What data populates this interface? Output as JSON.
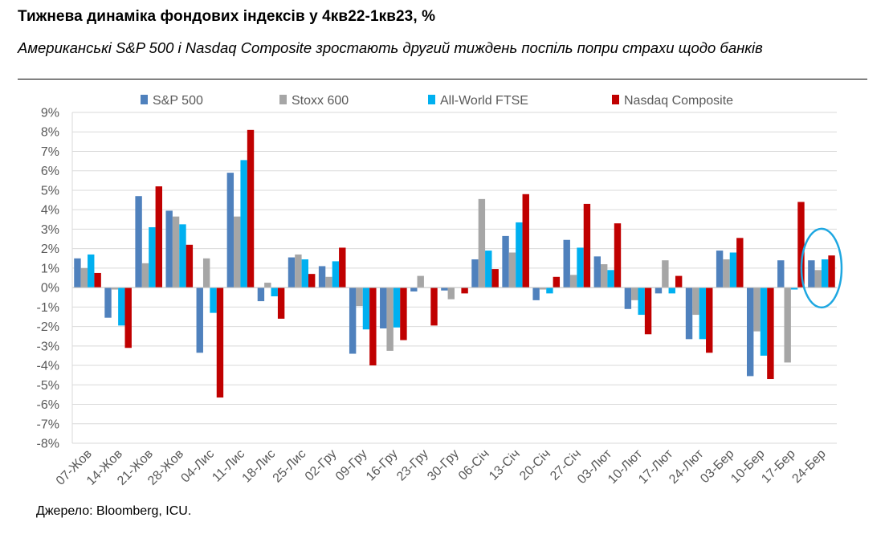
{
  "header": {
    "title": "Тижнева динаміка фондових індексів у 4кв22-1кв23, %",
    "subtitle": "Американські S&P 500 і Nasdaq Composite зростають другий тиждень поспіль попри страхи щодо банків"
  },
  "footer": {
    "source": "Джерело: Bloomberg, ICU."
  },
  "chart_data": {
    "type": "bar",
    "title": "Тижнева динаміка фондових індексів у 4кв22-1кв23, %",
    "xlabel": "",
    "ylabel": "",
    "ylim": [
      -8,
      9
    ],
    "yticks": [
      "9%",
      "8%",
      "7%",
      "6%",
      "5%",
      "4%",
      "3%",
      "2%",
      "1%",
      "0%",
      "-1%",
      "-2%",
      "-3%",
      "-4%",
      "-5%",
      "-6%",
      "-7%",
      "-8%"
    ],
    "grid": true,
    "legend_position": "top",
    "categories": [
      "07-Жов",
      "14-Жов",
      "21-Жов",
      "28-Жов",
      "04-Лис",
      "11-Лис",
      "18-Лис",
      "25-Лис",
      "02-Гру",
      "09-Гру",
      "16-Гру",
      "23-Гру",
      "30-Гру",
      "06-Січ",
      "13-Січ",
      "20-Січ",
      "27-Січ",
      "03-Лют",
      "10-Лют",
      "17-Лют",
      "24-Лют",
      "03-Бер",
      "10-Бер",
      "17-Бер",
      "24-Бер"
    ],
    "series": [
      {
        "name": "S&P 500",
        "color": "#4f81bd",
        "values": [
          1.5,
          -1.55,
          4.7,
          3.95,
          -3.35,
          5.9,
          -0.7,
          1.55,
          1.1,
          -3.4,
          -2.1,
          -0.2,
          -0.15,
          1.45,
          2.65,
          -0.65,
          2.45,
          1.6,
          -1.1,
          -0.3,
          -2.65,
          1.9,
          -4.55,
          1.4,
          1.4
        ]
      },
      {
        "name": "Stoxx 600",
        "color": "#a6a6a6",
        "values": [
          1.0,
          -0.1,
          1.25,
          3.65,
          1.5,
          3.65,
          0.25,
          1.7,
          0.55,
          -0.95,
          -3.25,
          0.6,
          -0.6,
          4.55,
          1.8,
          -0.1,
          0.65,
          1.2,
          -0.65,
          1.4,
          -1.4,
          1.45,
          -2.25,
          -3.85,
          0.9
        ]
      },
      {
        "name": "All-World FTSE",
        "color": "#00b0f0",
        "values": [
          1.7,
          -1.95,
          3.1,
          3.25,
          -1.3,
          6.55,
          -0.45,
          1.45,
          1.35,
          -2.15,
          -2.05,
          0.0,
          0.0,
          1.9,
          3.35,
          -0.3,
          2.05,
          0.9,
          -1.4,
          -0.3,
          -2.65,
          1.8,
          -3.5,
          -0.1,
          1.45
        ]
      },
      {
        "name": "Nasdaq Composite",
        "color": "#c00000",
        "values": [
          0.75,
          -3.1,
          5.2,
          2.2,
          -5.65,
          8.1,
          -1.6,
          0.7,
          2.05,
          -4.0,
          -2.7,
          -1.95,
          -0.3,
          0.95,
          4.8,
          0.55,
          4.3,
          3.3,
          -2.4,
          0.6,
          -3.35,
          2.55,
          -4.7,
          4.4,
          1.65
        ]
      }
    ],
    "annotations": [
      {
        "type": "ellipse",
        "target": "24-Бер",
        "color": "#1ea7e1"
      }
    ]
  }
}
